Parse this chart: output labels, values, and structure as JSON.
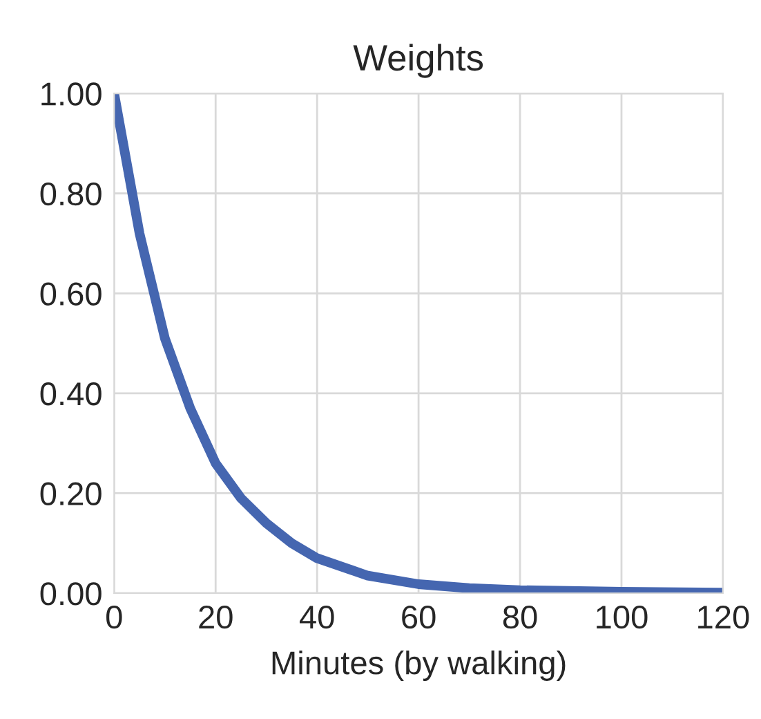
{
  "chart_data": {
    "type": "line",
    "title": "Weights",
    "xlabel": "Minutes (by walking)",
    "x": [
      0,
      5,
      10,
      15,
      20,
      25,
      30,
      35,
      40,
      50,
      60,
      70,
      80,
      100,
      120
    ],
    "series": [
      {
        "color": "#4566b0",
        "values": [
          1.0,
          0.72,
          0.51,
          0.37,
          0.26,
          0.19,
          0.14,
          0.1,
          0.07,
          0.035,
          0.018,
          0.01,
          0.006,
          0.003,
          0.001
        ]
      }
    ],
    "xlim": [
      0,
      120
    ],
    "xticks": [
      0,
      20,
      40,
      60,
      80,
      100,
      120
    ],
    "ylim": [
      0,
      1
    ],
    "yticks": [
      {
        "value": 0,
        "label": "0.00"
      },
      {
        "value": 0.2,
        "label": "0.20"
      },
      {
        "value": 0.4,
        "label": "0.40"
      },
      {
        "value": 0.6,
        "label": "0.60"
      },
      {
        "value": 0.8,
        "label": "0.80"
      },
      {
        "value": 1,
        "label": "1.00"
      }
    ],
    "grid": true,
    "legend": false
  }
}
